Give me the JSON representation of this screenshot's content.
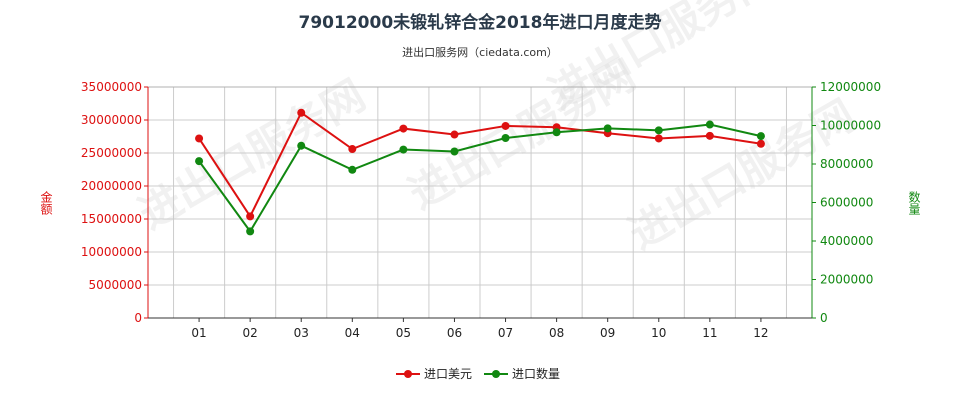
{
  "chart_data": {
    "type": "line",
    "title": "79012000未锻轧锌合金2018年进口月度走势",
    "subtitle": "进出口服务网（ciedata.com）",
    "watermark": "进出口服务网",
    "categories": [
      "01",
      "02",
      "03",
      "04",
      "05",
      "06",
      "07",
      "08",
      "09",
      "10",
      "11",
      "12"
    ],
    "y_left": {
      "label": "金额",
      "range": [
        0,
        35000000
      ],
      "ticks": [
        "0",
        "5000000",
        "10000000",
        "15000000",
        "20000000",
        "25000000",
        "30000000",
        "35000000"
      ]
    },
    "y_right": {
      "label": "数量",
      "range": [
        0,
        12000000
      ],
      "ticks": [
        "0",
        "2000000",
        "4000000",
        "6000000",
        "8000000",
        "10000000",
        "12000000"
      ]
    },
    "series": [
      {
        "name": "进口美元",
        "axis": "left",
        "color": "#dd1111",
        "values": [
          27200000,
          15400000,
          31100000,
          25600000,
          28700000,
          27800000,
          29100000,
          28900000,
          28000000,
          27200000,
          27600000,
          26400000
        ]
      },
      {
        "name": "进口数量",
        "axis": "right",
        "color": "#118811",
        "values": [
          8150000,
          4500000,
          8950000,
          7700000,
          8750000,
          8650000,
          9350000,
          9650000,
          9850000,
          9750000,
          10050000,
          9450000
        ]
      }
    ],
    "grid": true,
    "legend_position": "bottom-center"
  }
}
